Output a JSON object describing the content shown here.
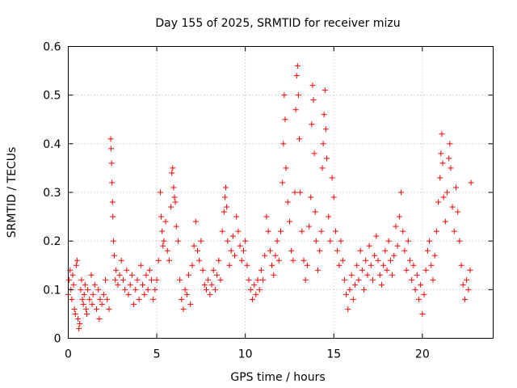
{
  "chart_data": {
    "type": "scatter",
    "title": "Day 155 of 2025, SRMTID for receiver mizu",
    "xlabel": "GPS time / hours",
    "ylabel": "SRMTID / TECUs",
    "xlim": [
      0,
      24
    ],
    "ylim": [
      0,
      0.6
    ],
    "xticks": [
      0,
      5,
      10,
      15,
      20
    ],
    "xtick_labels": [
      "0",
      "5",
      "10",
      "15",
      "20"
    ],
    "yticks": [
      0,
      0.1,
      0.2,
      0.3,
      0.4,
      0.5,
      0.6
    ],
    "ytick_labels": [
      "0",
      "0.1",
      "0.2",
      "0.3",
      "0.4",
      "0.5",
      "0.6"
    ],
    "grid": true,
    "marker": "+",
    "color": "#ff0000",
    "series": [
      {
        "name": "SRMTID",
        "points": [
          [
            0.0,
            0.09
          ],
          [
            0.05,
            0.12
          ],
          [
            0.1,
            0.14
          ],
          [
            0.15,
            0.1
          ],
          [
            0.2,
            0.08
          ],
          [
            0.25,
            0.13
          ],
          [
            0.3,
            0.11
          ],
          [
            0.35,
            0.06
          ],
          [
            0.4,
            0.05
          ],
          [
            0.45,
            0.15
          ],
          [
            0.5,
            0.16
          ],
          [
            0.55,
            0.04
          ],
          [
            0.6,
            0.02
          ],
          [
            0.65,
            0.03
          ],
          [
            0.7,
            0.1
          ],
          [
            0.75,
            0.12
          ],
          [
            0.8,
            0.08
          ],
          [
            0.85,
            0.07
          ],
          [
            0.9,
            0.09
          ],
          [
            0.95,
            0.11
          ],
          [
            1.0,
            0.06
          ],
          [
            1.05,
            0.05
          ],
          [
            1.1,
            0.1
          ],
          [
            1.2,
            0.08
          ],
          [
            1.3,
            0.13
          ],
          [
            1.35,
            0.07
          ],
          [
            1.4,
            0.09
          ],
          [
            1.5,
            0.11
          ],
          [
            1.6,
            0.06
          ],
          [
            1.7,
            0.1
          ],
          [
            1.75,
            0.04
          ],
          [
            1.8,
            0.08
          ],
          [
            1.9,
            0.07
          ],
          [
            2.0,
            0.09
          ],
          [
            2.1,
            0.12
          ],
          [
            2.2,
            0.08
          ],
          [
            2.3,
            0.06
          ],
          [
            2.4,
            0.41
          ],
          [
            2.42,
            0.39
          ],
          [
            2.45,
            0.36
          ],
          [
            2.47,
            0.32
          ],
          [
            2.5,
            0.28
          ],
          [
            2.52,
            0.25
          ],
          [
            2.55,
            0.2
          ],
          [
            2.6,
            0.17
          ],
          [
            2.65,
            0.12
          ],
          [
            2.7,
            0.14
          ],
          [
            2.8,
            0.11
          ],
          [
            2.9,
            0.13
          ],
          [
            3.0,
            0.16
          ],
          [
            3.1,
            0.12
          ],
          [
            3.2,
            0.1
          ],
          [
            3.3,
            0.14
          ],
          [
            3.4,
            0.09
          ],
          [
            3.5,
            0.11
          ],
          [
            3.6,
            0.13
          ],
          [
            3.7,
            0.07
          ],
          [
            3.8,
            0.1
          ],
          [
            3.9,
            0.12
          ],
          [
            4.0,
            0.08
          ],
          [
            4.1,
            0.15
          ],
          [
            4.2,
            0.11
          ],
          [
            4.3,
            0.09
          ],
          [
            4.4,
            0.13
          ],
          [
            4.5,
            0.1
          ],
          [
            4.6,
            0.14
          ],
          [
            4.7,
            0.12
          ],
          [
            4.8,
            0.08
          ],
          [
            4.9,
            0.1
          ],
          [
            5.0,
            0.12
          ],
          [
            5.1,
            0.16
          ],
          [
            5.2,
            0.3
          ],
          [
            5.25,
            0.25
          ],
          [
            5.3,
            0.22
          ],
          [
            5.35,
            0.19
          ],
          [
            5.4,
            0.2
          ],
          [
            5.5,
            0.24
          ],
          [
            5.6,
            0.18
          ],
          [
            5.7,
            0.16
          ],
          [
            5.8,
            0.27
          ],
          [
            5.85,
            0.34
          ],
          [
            5.9,
            0.35
          ],
          [
            5.95,
            0.31
          ],
          [
            6.0,
            0.29
          ],
          [
            6.05,
            0.28
          ],
          [
            6.1,
            0.23
          ],
          [
            6.2,
            0.2
          ],
          [
            6.3,
            0.12
          ],
          [
            6.4,
            0.08
          ],
          [
            6.5,
            0.06
          ],
          [
            6.6,
            0.1
          ],
          [
            6.7,
            0.09
          ],
          [
            6.8,
            0.13
          ],
          [
            6.9,
            0.07
          ],
          [
            7.0,
            0.15
          ],
          [
            7.1,
            0.19
          ],
          [
            7.2,
            0.24
          ],
          [
            7.3,
            0.18
          ],
          [
            7.4,
            0.16
          ],
          [
            7.5,
            0.2
          ],
          [
            7.6,
            0.14
          ],
          [
            7.7,
            0.11
          ],
          [
            7.8,
            0.1
          ],
          [
            7.9,
            0.12
          ],
          [
            8.0,
            0.09
          ],
          [
            8.1,
            0.11
          ],
          [
            8.2,
            0.14
          ],
          [
            8.3,
            0.1
          ],
          [
            8.4,
            0.13
          ],
          [
            8.5,
            0.16
          ],
          [
            8.6,
            0.12
          ],
          [
            8.7,
            0.22
          ],
          [
            8.8,
            0.26
          ],
          [
            8.85,
            0.29
          ],
          [
            8.9,
            0.31
          ],
          [
            8.95,
            0.27
          ],
          [
            9.0,
            0.2
          ],
          [
            9.1,
            0.15
          ],
          [
            9.2,
            0.18
          ],
          [
            9.3,
            0.21
          ],
          [
            9.4,
            0.17
          ],
          [
            9.5,
            0.25
          ],
          [
            9.6,
            0.22
          ],
          [
            9.7,
            0.19
          ],
          [
            9.8,
            0.16
          ],
          [
            9.9,
            0.18
          ],
          [
            10.0,
            0.2
          ],
          [
            10.1,
            0.15
          ],
          [
            10.2,
            0.12
          ],
          [
            10.3,
            0.1
          ],
          [
            10.4,
            0.08
          ],
          [
            10.5,
            0.11
          ],
          [
            10.6,
            0.09
          ],
          [
            10.7,
            0.12
          ],
          [
            10.8,
            0.1
          ],
          [
            10.9,
            0.14
          ],
          [
            11.0,
            0.12
          ],
          [
            11.1,
            0.17
          ],
          [
            11.2,
            0.25
          ],
          [
            11.3,
            0.22
          ],
          [
            11.4,
            0.18
          ],
          [
            11.5,
            0.15
          ],
          [
            11.6,
            0.13
          ],
          [
            11.7,
            0.17
          ],
          [
            11.8,
            0.2
          ],
          [
            11.9,
            0.16
          ],
          [
            12.0,
            0.22
          ],
          [
            12.1,
            0.32
          ],
          [
            12.15,
            0.4
          ],
          [
            12.2,
            0.5
          ],
          [
            12.25,
            0.45
          ],
          [
            12.3,
            0.35
          ],
          [
            12.4,
            0.28
          ],
          [
            12.5,
            0.24
          ],
          [
            12.6,
            0.18
          ],
          [
            12.7,
            0.16
          ],
          [
            12.8,
            0.3
          ],
          [
            12.85,
            0.47
          ],
          [
            12.9,
            0.54
          ],
          [
            12.95,
            0.56
          ],
          [
            13.0,
            0.5
          ],
          [
            13.05,
            0.41
          ],
          [
            13.1,
            0.3
          ],
          [
            13.2,
            0.22
          ],
          [
            13.3,
            0.16
          ],
          [
            13.4,
            0.12
          ],
          [
            13.5,
            0.15
          ],
          [
            13.6,
            0.23
          ],
          [
            13.7,
            0.29
          ],
          [
            13.75,
            0.44
          ],
          [
            13.8,
            0.52
          ],
          [
            13.85,
            0.49
          ],
          [
            13.9,
            0.38
          ],
          [
            13.95,
            0.26
          ],
          [
            14.0,
            0.2
          ],
          [
            14.1,
            0.14
          ],
          [
            14.2,
            0.18
          ],
          [
            14.3,
            0.22
          ],
          [
            14.35,
            0.35
          ],
          [
            14.4,
            0.4
          ],
          [
            14.45,
            0.46
          ],
          [
            14.5,
            0.51
          ],
          [
            14.55,
            0.43
          ],
          [
            14.6,
            0.37
          ],
          [
            14.7,
            0.25
          ],
          [
            14.8,
            0.2
          ],
          [
            14.9,
            0.33
          ],
          [
            15.0,
            0.29
          ],
          [
            15.1,
            0.22
          ],
          [
            15.2,
            0.18
          ],
          [
            15.3,
            0.15
          ],
          [
            15.4,
            0.2
          ],
          [
            15.5,
            0.16
          ],
          [
            15.6,
            0.12
          ],
          [
            15.7,
            0.09
          ],
          [
            15.8,
            0.06
          ],
          [
            15.9,
            0.1
          ],
          [
            16.0,
            0.13
          ],
          [
            16.1,
            0.08
          ],
          [
            16.2,
            0.11
          ],
          [
            16.3,
            0.15
          ],
          [
            16.4,
            0.12
          ],
          [
            16.5,
            0.18
          ],
          [
            16.6,
            0.14
          ],
          [
            16.7,
            0.1
          ],
          [
            16.8,
            0.16
          ],
          [
            16.9,
            0.13
          ],
          [
            17.0,
            0.19
          ],
          [
            17.1,
            0.15
          ],
          [
            17.2,
            0.12
          ],
          [
            17.3,
            0.17
          ],
          [
            17.4,
            0.21
          ],
          [
            17.5,
            0.16
          ],
          [
            17.6,
            0.13
          ],
          [
            17.7,
            0.11
          ],
          [
            17.8,
            0.15
          ],
          [
            17.9,
            0.18
          ],
          [
            18.0,
            0.14
          ],
          [
            18.1,
            0.2
          ],
          [
            18.2,
            0.16
          ],
          [
            18.3,
            0.13
          ],
          [
            18.4,
            0.17
          ],
          [
            18.5,
            0.23
          ],
          [
            18.6,
            0.19
          ],
          [
            18.7,
            0.25
          ],
          [
            18.8,
            0.3
          ],
          [
            18.9,
            0.22
          ],
          [
            19.0,
            0.18
          ],
          [
            19.1,
            0.14
          ],
          [
            19.2,
            0.2
          ],
          [
            19.3,
            0.16
          ],
          [
            19.4,
            0.12
          ],
          [
            19.5,
            0.15
          ],
          [
            19.6,
            0.1
          ],
          [
            19.7,
            0.13
          ],
          [
            19.8,
            0.08
          ],
          [
            19.9,
            0.11
          ],
          [
            20.0,
            0.05
          ],
          [
            20.1,
            0.09
          ],
          [
            20.2,
            0.14
          ],
          [
            20.3,
            0.18
          ],
          [
            20.4,
            0.2
          ],
          [
            20.5,
            0.15
          ],
          [
            20.6,
            0.12
          ],
          [
            20.7,
            0.17
          ],
          [
            20.8,
            0.22
          ],
          [
            20.9,
            0.28
          ],
          [
            21.0,
            0.33
          ],
          [
            21.05,
            0.38
          ],
          [
            21.1,
            0.42
          ],
          [
            21.15,
            0.36
          ],
          [
            21.2,
            0.29
          ],
          [
            21.3,
            0.24
          ],
          [
            21.4,
            0.3
          ],
          [
            21.5,
            0.37
          ],
          [
            21.55,
            0.4
          ],
          [
            21.6,
            0.35
          ],
          [
            21.7,
            0.27
          ],
          [
            21.8,
            0.22
          ],
          [
            21.9,
            0.31
          ],
          [
            22.0,
            0.26
          ],
          [
            22.1,
            0.2
          ],
          [
            22.2,
            0.15
          ],
          [
            22.3,
            0.11
          ],
          [
            22.4,
            0.08
          ],
          [
            22.5,
            0.12
          ],
          [
            22.6,
            0.1
          ],
          [
            22.7,
            0.14
          ],
          [
            22.75,
            0.32
          ]
        ]
      }
    ]
  }
}
